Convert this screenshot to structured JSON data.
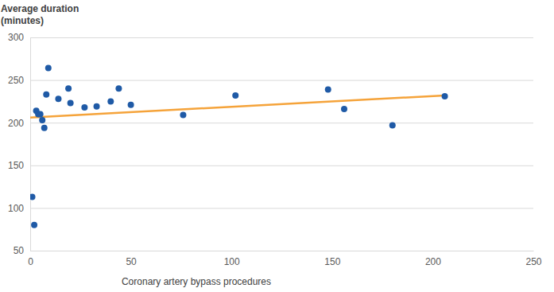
{
  "chart_data": {
    "type": "scatter",
    "y_label": [
      "Average duration",
      "(minutes)"
    ],
    "x_label": "Coronary artery bypass procedures",
    "x": [
      1,
      2,
      3,
      4,
      5,
      6,
      7,
      8,
      9,
      14,
      19,
      20,
      27,
      33,
      40,
      44,
      50,
      76,
      102,
      148,
      156,
      180,
      206
    ],
    "values": [
      113,
      80,
      214,
      210,
      210,
      203,
      194,
      233,
      264,
      228,
      240,
      223,
      218,
      219,
      225,
      240,
      221,
      209,
      232,
      239,
      216,
      197,
      231
    ],
    "color": "#1f5aa6",
    "marker": "circle",
    "trend_line": {
      "x": [
        0,
        206
      ],
      "values": [
        206,
        232
      ],
      "color": "#f5a33a"
    },
    "xlim": [
      0,
      250
    ],
    "xticks": [
      0,
      50,
      100,
      150,
      200,
      250
    ],
    "ylim": [
      50,
      300
    ],
    "yticks": [
      50,
      100,
      150,
      200,
      250,
      300
    ],
    "grid": true
  }
}
